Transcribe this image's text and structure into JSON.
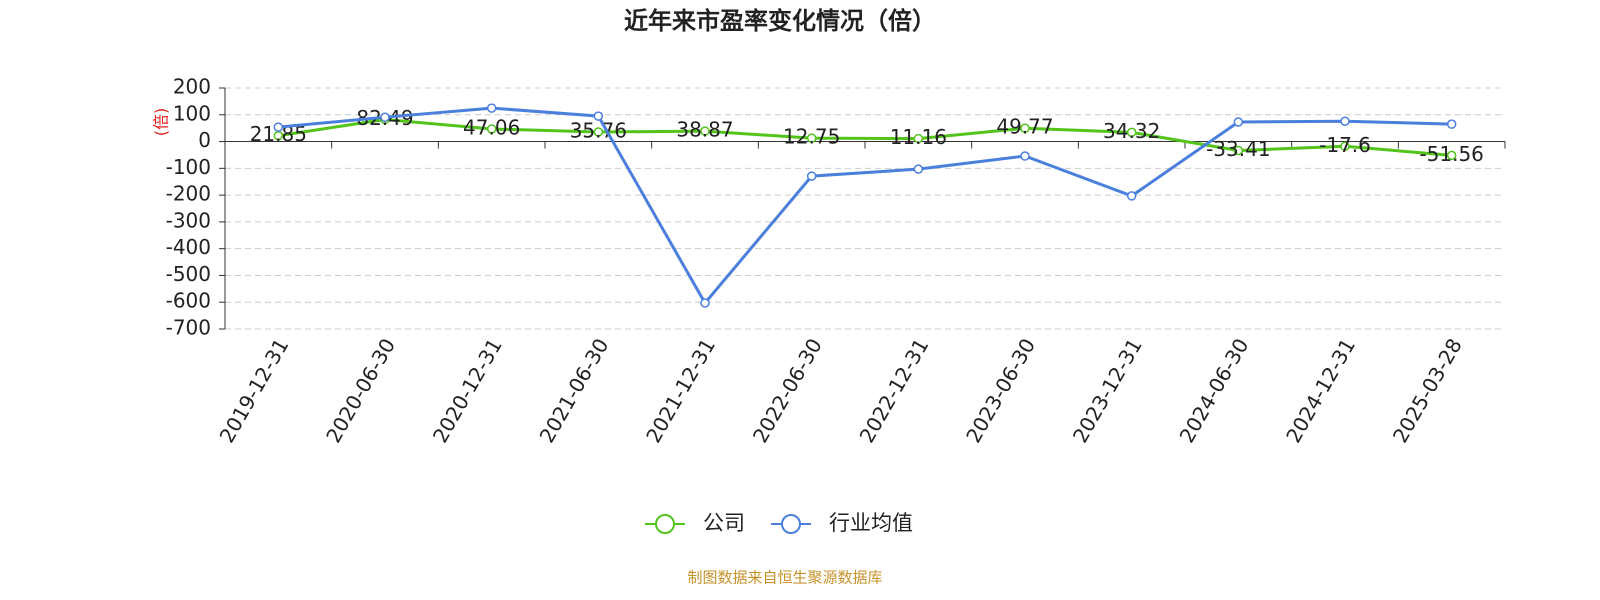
{
  "chart_data": {
    "type": "line",
    "title": "近年来市盈率变化情况（倍）",
    "y_label": "(倍)",
    "source": "制图数据来自恒生聚源数据库",
    "categories": [
      "2019-12-31",
      "2020-06-30",
      "2020-12-31",
      "2021-06-30",
      "2021-12-31",
      "2022-06-30",
      "2022-12-31",
      "2023-06-30",
      "2023-12-31",
      "2024-06-30",
      "2024-12-31",
      "2025-03-28"
    ],
    "series": [
      {
        "name": "公司",
        "color": "#52c41a",
        "show_labels": true,
        "values": [
          21.85,
          82.49,
          47.06,
          35.76,
          38.87,
          12.75,
          11.16,
          49.77,
          34.32,
          -33.41,
          -17.6,
          -51.56
        ]
      },
      {
        "name": "行业均值",
        "color": "#4a7fdc",
        "show_labels": false,
        "values": [
          54,
          91,
          125,
          95,
          -603,
          -129,
          -103,
          -54,
          -203,
          73,
          76,
          65
        ]
      }
    ],
    "ylim": [
      -700,
      200
    ],
    "yticks": [
      200,
      100,
      0,
      -100,
      -200,
      -300,
      -400,
      -500,
      -600,
      -700
    ],
    "grid": true,
    "legend": "bottom"
  }
}
